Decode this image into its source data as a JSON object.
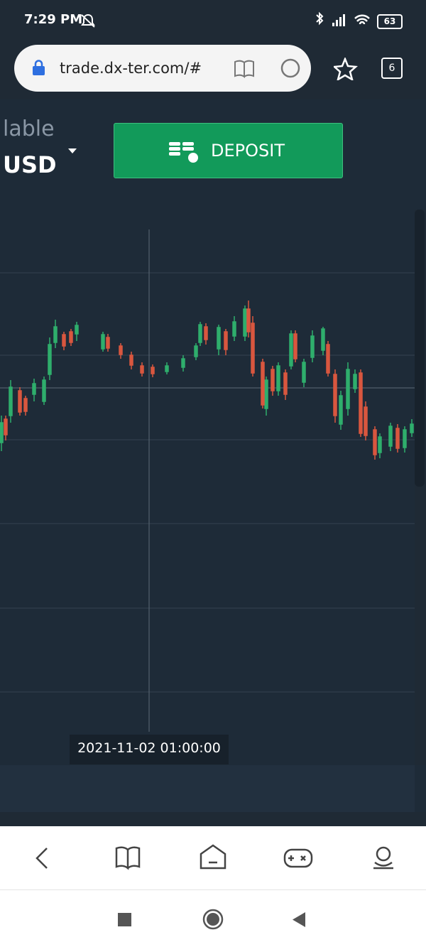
{
  "status": {
    "time": "7:29 PM",
    "battery": "63"
  },
  "browser": {
    "url": "trade.dx-ter.com/#",
    "tabs": "6"
  },
  "account": {
    "label": "lable",
    "currency": "USD"
  },
  "deposit": "DEPOSIT",
  "chart": {
    "crosshair_time": "2021-11-02 01:00:00"
  }
}
